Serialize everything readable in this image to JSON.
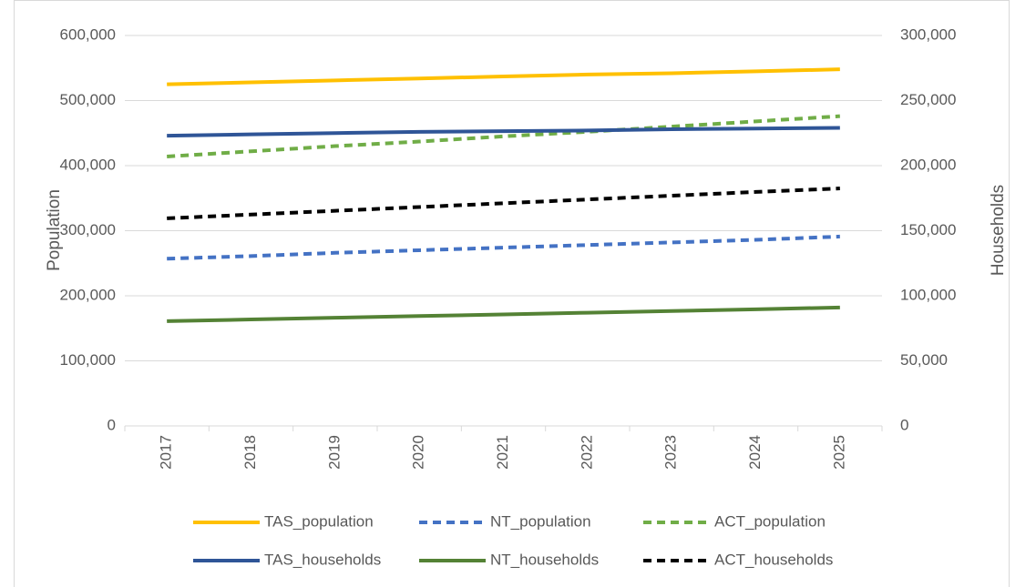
{
  "chart_data": {
    "type": "line",
    "categories": [
      "2017",
      "2018",
      "2019",
      "2020",
      "2021",
      "2022",
      "2023",
      "2024",
      "2025"
    ],
    "y_label": "Population",
    "y2_label": "Households",
    "ylim": [
      0,
      600000
    ],
    "yticks": [
      0,
      {
        "value": 100000,
        "label": "100,000"
      },
      {
        "value": 200000,
        "label": "200,000"
      },
      {
        "value": 300000,
        "label": "300,000"
      },
      {
        "value": 400000,
        "label": "400,000"
      },
      {
        "value": 500000,
        "label": "500,000"
      },
      {
        "value": 600000,
        "label": "600,000"
      }
    ],
    "y2lim": [
      0,
      300000
    ],
    "y2ticks": [
      0,
      {
        "value": 50000,
        "label": "50,000"
      },
      {
        "value": 100000,
        "label": "100,000"
      },
      {
        "value": 150000,
        "label": "150,000"
      },
      {
        "value": 200000,
        "label": "200,000"
      },
      {
        "value": 250000,
        "label": "250,000"
      },
      {
        "value": 300000,
        "label": "300,000"
      }
    ],
    "grid": true,
    "legend": "bottom",
    "series": [
      {
        "name": "TAS_population",
        "color": "#ffc000",
        "style": "solid",
        "values": [
          525000,
          528000,
          531000,
          534000,
          537000,
          540000,
          542000,
          545000,
          548000
        ]
      },
      {
        "name": "NT_population",
        "color": "#4472c4",
        "style": "dashed",
        "values": [
          257000,
          261000,
          266000,
          270000,
          274000,
          278000,
          282000,
          286000,
          291000
        ]
      },
      {
        "name": "ACT_population",
        "color": "#70ad47",
        "style": "dashed",
        "values": [
          414000,
          422000,
          430000,
          437000,
          445000,
          452000,
          460000,
          468000,
          476000
        ]
      },
      {
        "name": "TAS_households",
        "color": "#2f5597",
        "style": "solid",
        "axis": "y2",
        "values": [
          223000,
          224000,
          225000,
          226000,
          226500,
          227000,
          228000,
          228500,
          229000
        ]
      },
      {
        "name": "NT_households",
        "color": "#548235",
        "style": "solid",
        "axis": "y2",
        "values": [
          80500,
          81800,
          83100,
          84400,
          85700,
          87000,
          88300,
          89600,
          91000
        ]
      },
      {
        "name": "ACT_households",
        "color": "#000000",
        "style": "dashed",
        "axis": "y2",
        "values": [
          159500,
          162400,
          165300,
          168200,
          171100,
          174000,
          176900,
          179800,
          182500
        ]
      }
    ]
  }
}
